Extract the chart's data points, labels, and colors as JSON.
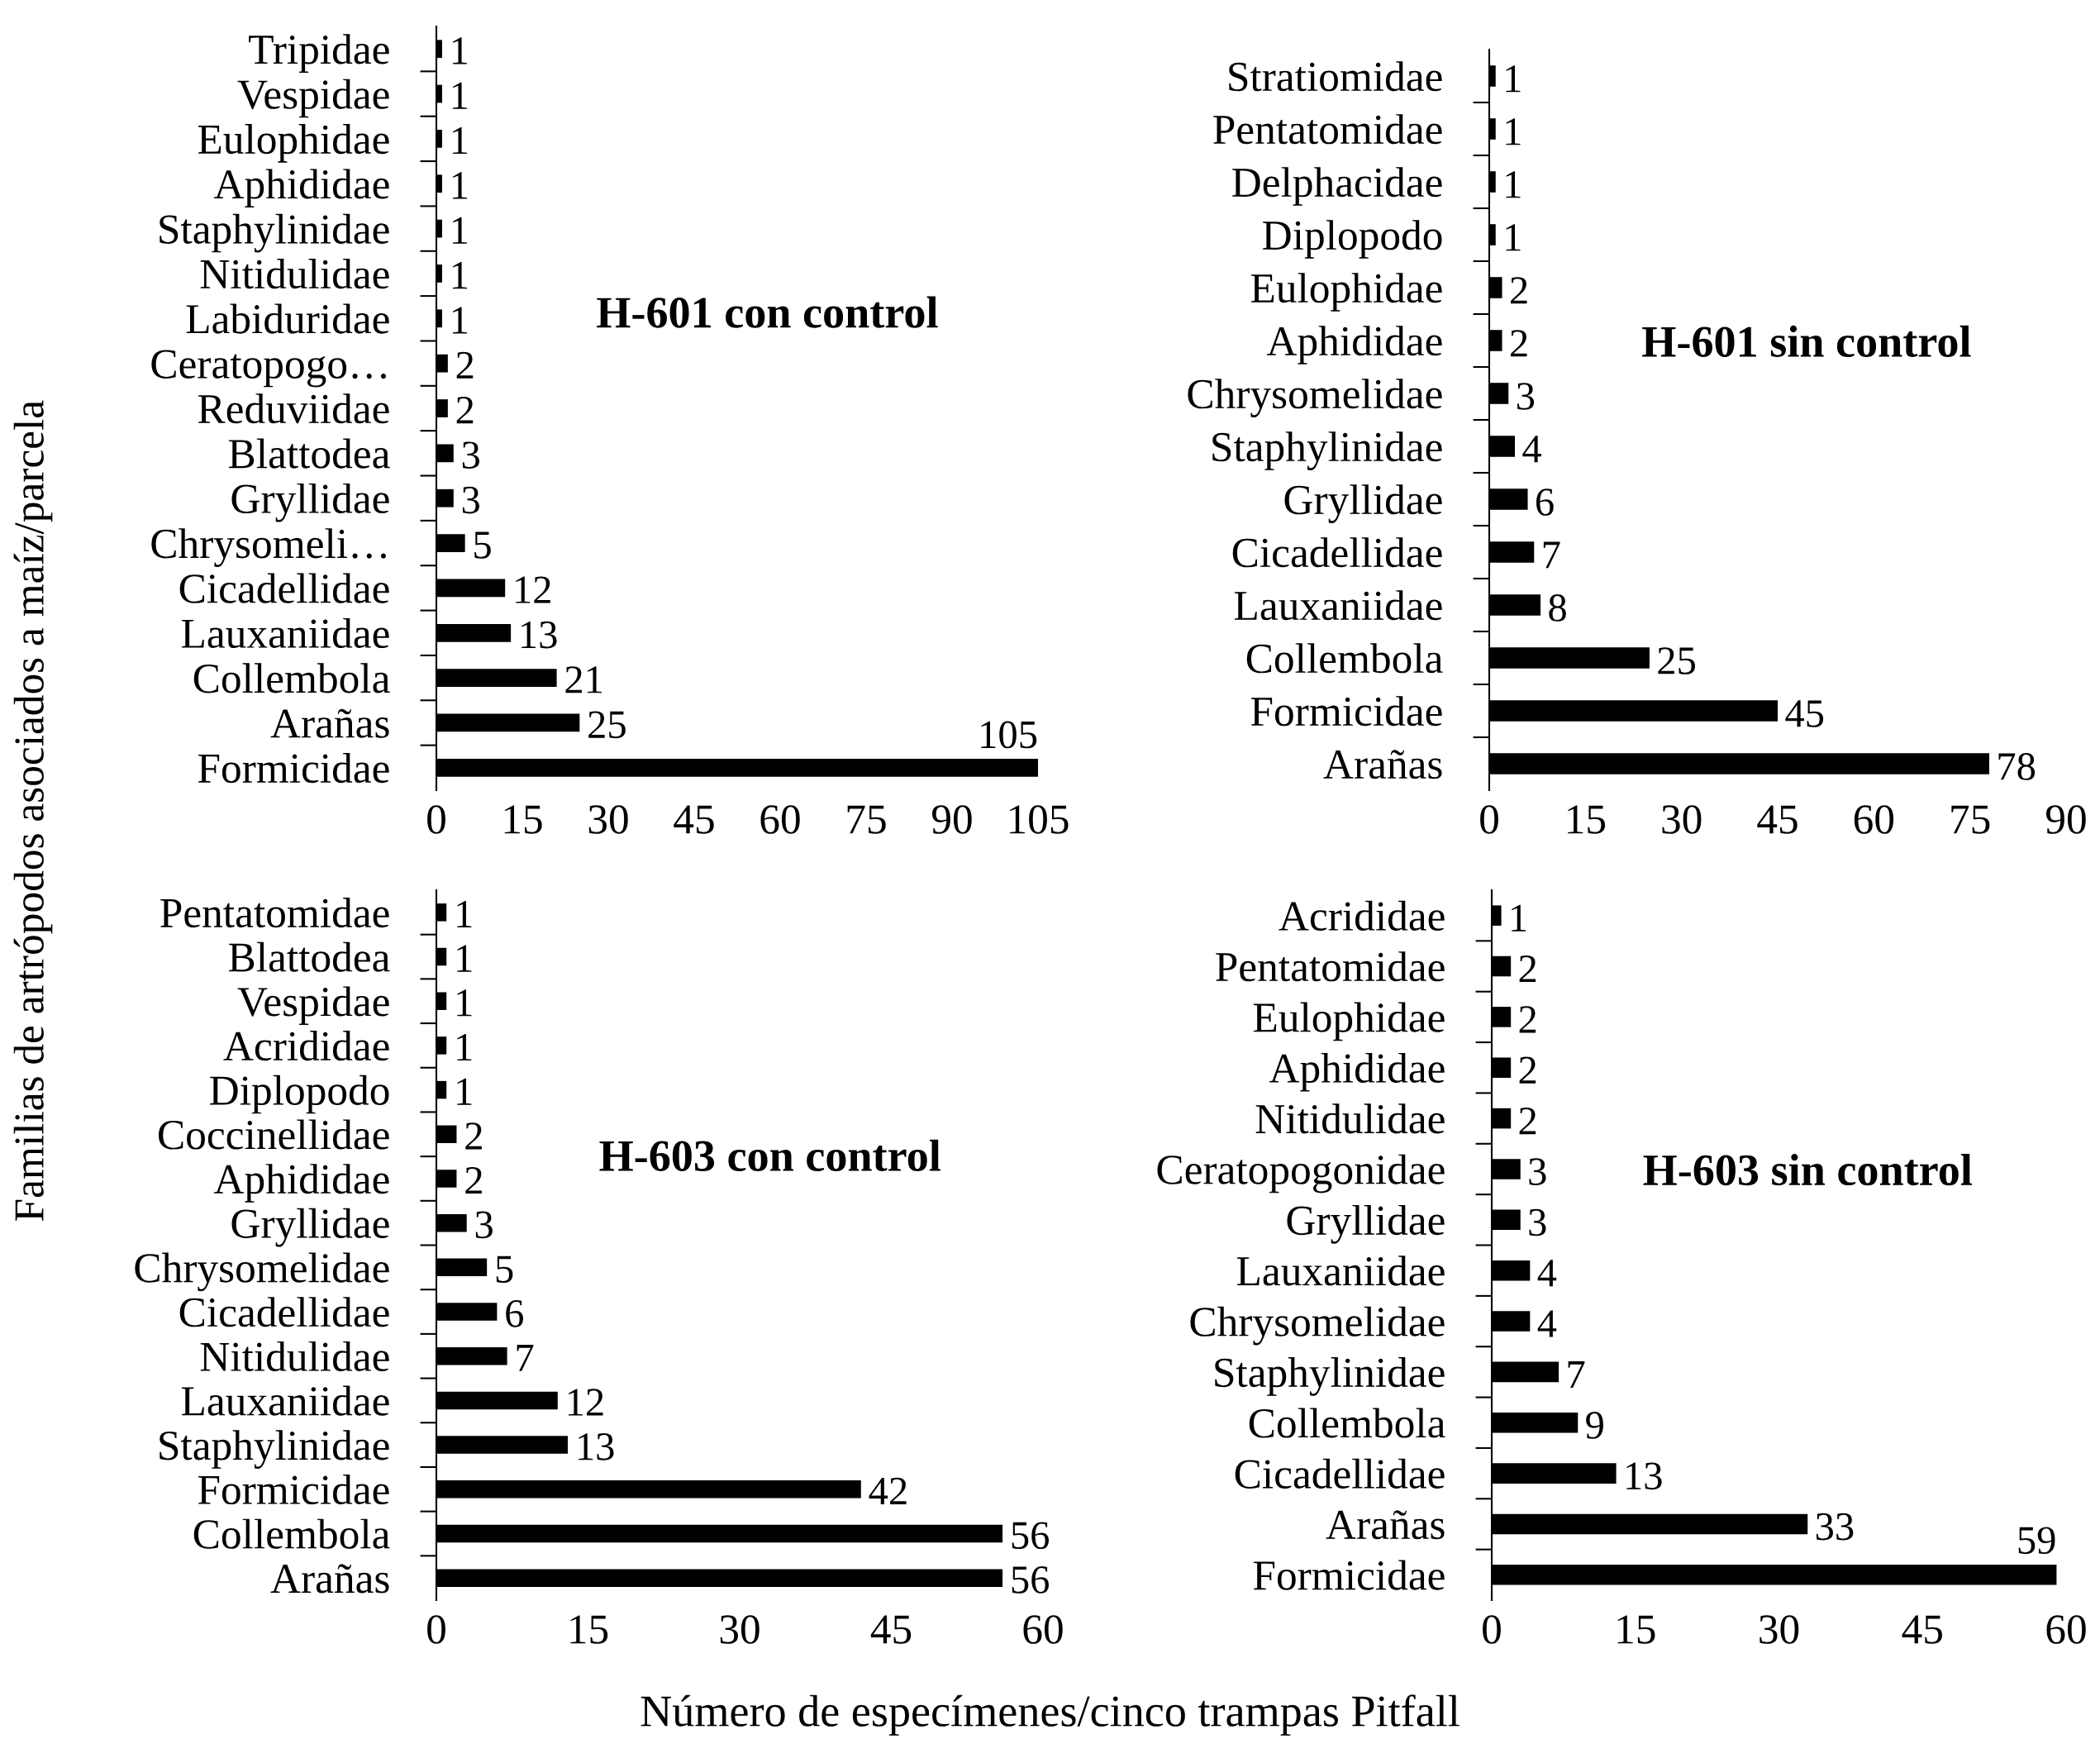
{
  "chart_data": [
    {
      "type": "bar",
      "orientation": "horizontal",
      "title": "H-601 con control",
      "ylabel": "Familias de artrópodos asociados a maíz/parcela",
      "color": "#000000",
      "data_labels": true,
      "grid": false,
      "legend": false,
      "categories": [
        "Tripidae",
        "Vespidae",
        "Eulophidae",
        "Aphididae",
        "Staphylinidae",
        "Nitidulidae",
        "Labiduridae",
        "Ceratopogo…",
        "Reduviidae",
        "Blattodea",
        "Gryllidae",
        "Chrysomeli…",
        "Cicadellidae",
        "Lauxaniidae",
        "Collembola",
        "Arañas",
        "Formicidae"
      ],
      "values": [
        1,
        1,
        1,
        1,
        1,
        1,
        1,
        2,
        2,
        3,
        3,
        5,
        12,
        13,
        21,
        25,
        105
      ],
      "xlim": [
        0,
        105
      ],
      "xticks": [
        0,
        15,
        30,
        45,
        60,
        75,
        90,
        105
      ]
    },
    {
      "type": "bar",
      "orientation": "horizontal",
      "title": "H-601 sin control",
      "color": "#000000",
      "data_labels": true,
      "grid": false,
      "legend": false,
      "categories": [
        "Stratiomidae",
        "Pentatomidae",
        "Delphacidae",
        "Diplopodo",
        "Eulophidae",
        "Aphididae",
        "Chrysomelidae",
        "Staphylinidae",
        "Gryllidae",
        "Cicadellidae",
        "Lauxaniidae",
        "Collembola",
        "Formicidae",
        "Arañas"
      ],
      "values": [
        1,
        1,
        1,
        1,
        2,
        2,
        3,
        4,
        6,
        7,
        8,
        25,
        45,
        78
      ],
      "xlim": [
        0,
        90
      ],
      "xticks": [
        0,
        15,
        30,
        45,
        60,
        75,
        90
      ]
    },
    {
      "type": "bar",
      "orientation": "horizontal",
      "title": "H-603 con control",
      "xlabel": "Número de especímenes/cinco trampas Pitfall",
      "color": "#000000",
      "data_labels": true,
      "grid": false,
      "legend": false,
      "categories": [
        "Pentatomidae",
        "Blattodea",
        "Vespidae",
        "Acrididae",
        "Diplopodo",
        "Coccinellidae",
        "Aphididae",
        "Gryllidae",
        "Chrysomelidae",
        "Cicadellidae",
        "Nitidulidae",
        "Lauxaniidae",
        "Staphylinidae",
        "Formicidae",
        "Collembola",
        "Arañas"
      ],
      "values": [
        1,
        1,
        1,
        1,
        1,
        2,
        2,
        3,
        5,
        6,
        7,
        12,
        13,
        42,
        56,
        56
      ],
      "xlim": [
        0,
        60
      ],
      "xticks": [
        0,
        15,
        30,
        45,
        60
      ]
    },
    {
      "type": "bar",
      "orientation": "horizontal",
      "title": "H-603 sin control",
      "color": "#000000",
      "data_labels": true,
      "grid": false,
      "legend": false,
      "categories": [
        "Acrididae",
        "Pentatomidae",
        "Eulophidae",
        "Aphididae",
        "Nitidulidae",
        "Ceratopogonidae",
        "Gryllidae",
        "Lauxaniidae",
        "Chrysomelidae",
        "Staphylinidae",
        "Collembola",
        "Cicadellidae",
        "Arañas",
        "Formicidae"
      ],
      "values": [
        1,
        2,
        2,
        2,
        2,
        3,
        3,
        4,
        4,
        7,
        9,
        13,
        33,
        59
      ],
      "xlim": [
        0,
        60
      ],
      "xticks": [
        0,
        15,
        30,
        45,
        60
      ]
    }
  ]
}
